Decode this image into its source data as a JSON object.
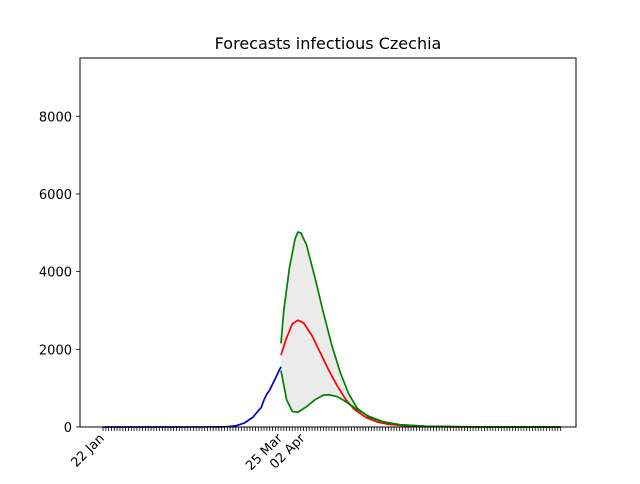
{
  "chart_data": {
    "type": "line",
    "title": "Forecasts infectious Czechia",
    "xlabel": "",
    "ylabel": "",
    "x_start": "2020-01-22",
    "x_end": "2020-07-02",
    "xticklabels": [
      {
        "label": "22 Jan",
        "date": "2020-01-22"
      },
      {
        "label": "25 Mar",
        "date": "2020-03-25"
      },
      {
        "label": "02 Apr",
        "date": "2020-04-02"
      }
    ],
    "ylim": [
      0,
      9500
    ],
    "yticks": [
      0,
      2000,
      4000,
      6000,
      8000
    ],
    "ytick_labels": [
      "0",
      "2000",
      "4000",
      "6000",
      "8000"
    ],
    "grid": false,
    "legend": "none",
    "series": [
      {
        "color": "#0000cc",
        "points": [
          [
            "2020-01-22",
            0
          ],
          [
            "2020-02-15",
            0
          ],
          [
            "2020-02-29",
            2
          ],
          [
            "2020-03-03",
            3
          ],
          [
            "2020-03-06",
            8
          ],
          [
            "2020-03-09",
            30
          ],
          [
            "2020-03-12",
            100
          ],
          [
            "2020-03-15",
            250
          ],
          [
            "2020-03-17",
            420
          ],
          [
            "2020-03-18",
            500
          ],
          [
            "2020-03-19",
            700
          ],
          [
            "2020-03-20",
            850
          ],
          [
            "2020-03-21",
            950
          ],
          [
            "2020-03-22",
            1100
          ],
          [
            "2020-03-23",
            1250
          ],
          [
            "2020-03-24",
            1400
          ],
          [
            "2020-03-25",
            1550
          ]
        ]
      },
      {
        "color": "#ff0000",
        "points": [
          [
            "2020-03-25",
            1850
          ],
          [
            "2020-03-27",
            2300
          ],
          [
            "2020-03-29",
            2650
          ],
          [
            "2020-03-31",
            2750
          ],
          [
            "2020-04-02",
            2680
          ],
          [
            "2020-04-05",
            2350
          ],
          [
            "2020-04-08",
            1900
          ],
          [
            "2020-04-11",
            1450
          ],
          [
            "2020-04-14",
            1050
          ],
          [
            "2020-04-17",
            700
          ],
          [
            "2020-04-20",
            450
          ],
          [
            "2020-04-24",
            250
          ],
          [
            "2020-04-28",
            130
          ],
          [
            "2020-05-02",
            70
          ],
          [
            "2020-05-08",
            30
          ],
          [
            "2020-05-15",
            10
          ],
          [
            "2020-05-25",
            3
          ],
          [
            "2020-07-02",
            0
          ]
        ]
      },
      {
        "color": "#008000",
        "points": [
          [
            "2020-03-25",
            2150
          ],
          [
            "2020-03-26",
            3000
          ],
          [
            "2020-03-28",
            4100
          ],
          [
            "2020-03-30",
            4850
          ],
          [
            "2020-03-31",
            5020
          ],
          [
            "2020-04-01",
            5000
          ],
          [
            "2020-04-03",
            4700
          ],
          [
            "2020-04-06",
            3850
          ],
          [
            "2020-04-09",
            2950
          ],
          [
            "2020-04-12",
            2100
          ],
          [
            "2020-04-15",
            1400
          ],
          [
            "2020-04-18",
            850
          ],
          [
            "2020-04-21",
            480
          ],
          [
            "2020-04-25",
            260
          ],
          [
            "2020-04-30",
            130
          ],
          [
            "2020-05-06",
            60
          ],
          [
            "2020-05-15",
            20
          ],
          [
            "2020-05-30",
            5
          ],
          [
            "2020-07-02",
            0
          ]
        ]
      },
      {
        "color": "#008000",
        "points": [
          [
            "2020-03-25",
            1450
          ],
          [
            "2020-03-27",
            700
          ],
          [
            "2020-03-29",
            400
          ],
          [
            "2020-03-31",
            380
          ],
          [
            "2020-04-03",
            520
          ],
          [
            "2020-04-06",
            700
          ],
          [
            "2020-04-09",
            820
          ],
          [
            "2020-04-11",
            830
          ],
          [
            "2020-04-14",
            780
          ],
          [
            "2020-04-17",
            650
          ],
          [
            "2020-04-21",
            450
          ],
          [
            "2020-04-25",
            280
          ],
          [
            "2020-04-30",
            140
          ],
          [
            "2020-05-06",
            60
          ],
          [
            "2020-05-15",
            20
          ],
          [
            "2020-05-30",
            5
          ],
          [
            "2020-07-02",
            0
          ]
        ]
      }
    ],
    "band": {
      "between_series": [
        2,
        3
      ],
      "fill": "#e6e6e6",
      "opacity": 0.8
    }
  }
}
